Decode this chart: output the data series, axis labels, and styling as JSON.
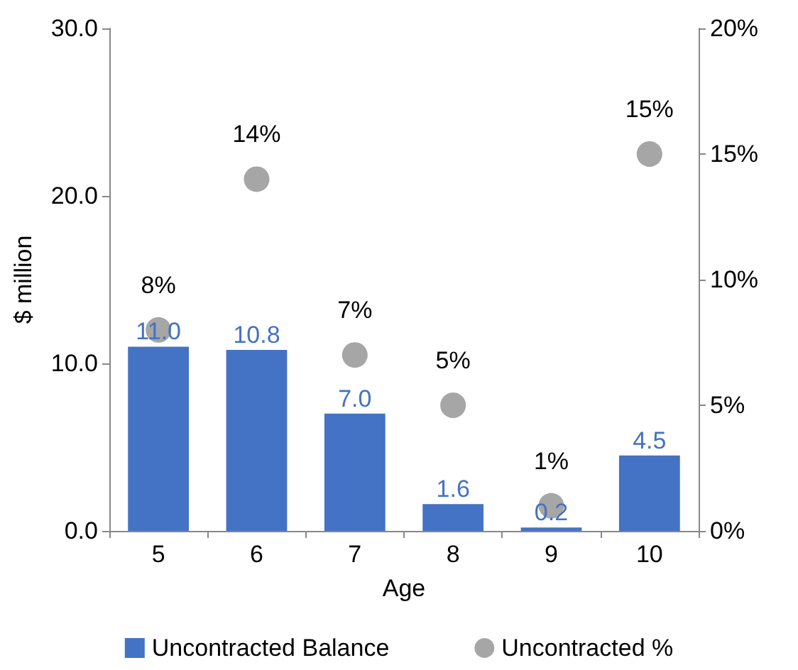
{
  "chart_data": {
    "type": "bar",
    "xlabel": "Age",
    "ylabel": "$ million",
    "categories": [
      "5",
      "6",
      "7",
      "8",
      "9",
      "10"
    ],
    "series": [
      {
        "name": "Uncontracted Balance",
        "color": "#4472c4",
        "values": [
          11.0,
          10.8,
          7.0,
          1.6,
          0.2,
          4.5
        ],
        "value_labels": [
          "11.0",
          "10.8",
          "7.0",
          "1.6",
          "0.2",
          "4.5"
        ]
      },
      {
        "name": "Uncontracted %",
        "type": "scatter",
        "axis": "y2",
        "color": "#a6a6a6",
        "values": [
          8,
          14,
          7,
          5,
          1,
          15
        ],
        "value_labels": [
          "8%",
          "14%",
          "7%",
          "5%",
          "1%",
          "15%"
        ]
      }
    ],
    "ylim": [
      0,
      30
    ],
    "yticks": [
      {
        "value": 0,
        "label": "0.0"
      },
      {
        "value": 10,
        "label": "10.0"
      },
      {
        "value": 20,
        "label": "20.0"
      },
      {
        "value": 30,
        "label": "30.0"
      }
    ],
    "y2lim": [
      0,
      20
    ],
    "y2ticks": [
      {
        "value": 0,
        "label": "0%"
      },
      {
        "value": 5,
        "label": "5%"
      },
      {
        "value": 10,
        "label": "10%"
      },
      {
        "value": 15,
        "label": "15%"
      },
      {
        "value": 20,
        "label": "20%"
      }
    ],
    "grid": false,
    "legend": "bottom",
    "marker": "circle"
  }
}
